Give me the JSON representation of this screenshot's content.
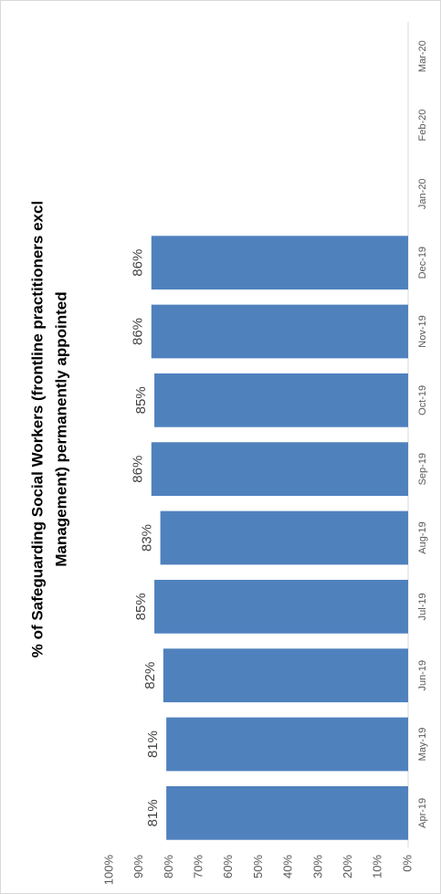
{
  "chart_data": {
    "type": "bar",
    "title": [
      "% of Safeguarding Social Workers (frontline practitioners excl",
      "Management) permanently appointed"
    ],
    "categories": [
      "Apr-19",
      "May-19",
      "Jun-19",
      "Jul-19",
      "Aug-19",
      "Sep-19",
      "Oct-19",
      "Nov-19",
      "Dec-19",
      "Jan-20",
      "Feb-20",
      "Mar-20"
    ],
    "values": [
      81,
      81,
      82,
      85,
      83,
      86,
      85,
      86,
      86,
      null,
      null,
      null
    ],
    "value_labels": [
      "81%",
      "81%",
      "82%",
      "85%",
      "83%",
      "86%",
      "85%",
      "86%",
      "86%",
      null,
      null,
      null
    ],
    "color": "#4f81bd",
    "ylim": [
      0,
      100
    ],
    "yticks": [
      {
        "value": 0,
        "label": "0%"
      },
      {
        "value": 10,
        "label": "10%"
      },
      {
        "value": 20,
        "label": "20%"
      },
      {
        "value": 30,
        "label": "30%"
      },
      {
        "value": 40,
        "label": "40%"
      },
      {
        "value": 50,
        "label": "50%"
      },
      {
        "value": 60,
        "label": "60%"
      },
      {
        "value": 70,
        "label": "70%"
      },
      {
        "value": 80,
        "label": "80%"
      },
      {
        "value": 90,
        "label": "90%"
      },
      {
        "value": 100,
        "label": "100%"
      }
    ],
    "grid": false
  }
}
